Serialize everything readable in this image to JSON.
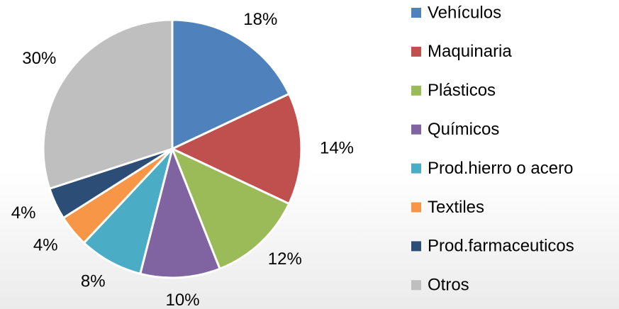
{
  "chart_data": {
    "type": "pie",
    "categories": [
      "Vehículos",
      "Maquinaria",
      "Plásticos",
      "Químicos",
      "Prod.hierro o acero",
      "Textiles",
      "Prod.farmaceuticos",
      "Otros"
    ],
    "values": [
      18,
      14,
      12,
      10,
      8,
      4,
      4,
      30
    ],
    "value_labels": [
      "18%",
      "14%",
      "12%",
      "10%",
      "8%",
      "4%",
      "4%",
      "30%"
    ],
    "colors": [
      "#4f81bd",
      "#c0504d",
      "#9bbb59",
      "#8064a2",
      "#4bacc6",
      "#f79646",
      "#2c4d75",
      "#bfbfbf"
    ],
    "legend": "right"
  }
}
